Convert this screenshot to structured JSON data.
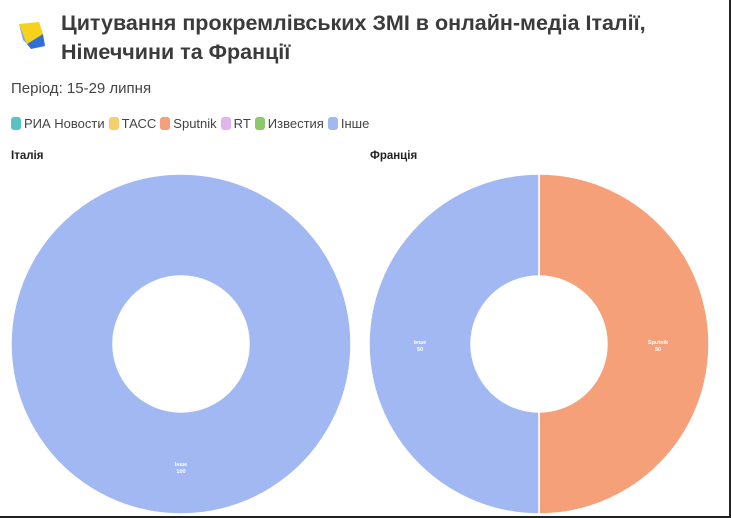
{
  "header": {
    "title_line1": "Цитування прокремлівських ЗМІ в онлайн-медіа Італії,",
    "title_line2": "Німеччини та Франції",
    "logo_icon": "ua-brand-logo-icon"
  },
  "period": "Період: 15-29 липня",
  "legend": [
    {
      "label": "РИА Новости",
      "color": "#5bc2c4"
    },
    {
      "label": "ТАСС",
      "color": "#f5cf6b"
    },
    {
      "label": "Sputnik",
      "color": "#f5a078"
    },
    {
      "label": "RT",
      "color": "#e1b4ee"
    },
    {
      "label": "Известия",
      "color": "#8cc96a"
    },
    {
      "label": "Інше",
      "color": "#a1b8f2"
    }
  ],
  "chart_data": [
    {
      "type": "pie",
      "title": "Італія",
      "slices": [
        {
          "label": "Інше",
          "value": 100,
          "color": "#a1b8f2"
        }
      ]
    },
    {
      "type": "pie",
      "title": "Франція",
      "slices": [
        {
          "label": "Sputnik",
          "value": 50,
          "color": "#f5a078"
        },
        {
          "label": "Інше",
          "value": 50,
          "color": "#a1b8f2"
        }
      ]
    }
  ]
}
